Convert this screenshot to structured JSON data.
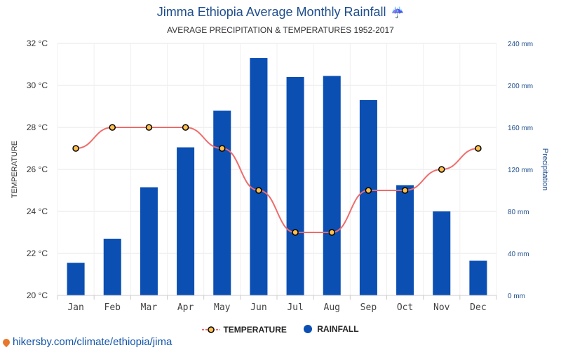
{
  "title": "Jimma Ethiopia Average Monthly Rainfall",
  "title_icon": "umbrella-rain-icon",
  "subtitle": "AVERAGE PRECIPITATION & TEMPERATURES 1952-2017",
  "source": "hikersby.com/climate/ethiopia/jima",
  "colors": {
    "title": "#1f4e8c",
    "bar": "#0b4fb3",
    "line": "#ef6b6b",
    "marker_fill": "#ffc04d",
    "marker_stroke": "#000000",
    "right_axis": "#1f4e8c"
  },
  "chart_data": {
    "type": "bar+line",
    "categories": [
      "Jan",
      "Feb",
      "Mar",
      "Apr",
      "May",
      "Jun",
      "Jul",
      "Aug",
      "Sep",
      "Oct",
      "Nov",
      "Dec"
    ],
    "series": [
      {
        "name": "RAINFALL",
        "type": "bar",
        "axis": "right",
        "unit": "mm",
        "values": [
          31,
          54,
          103,
          141,
          176,
          226,
          208,
          209,
          186,
          105,
          80,
          33
        ]
      },
      {
        "name": "TEMPERATURE",
        "type": "line",
        "axis": "left",
        "unit": "°C",
        "values": [
          27,
          28,
          28,
          28,
          27,
          25,
          23,
          23,
          25,
          25,
          26,
          27
        ]
      }
    ],
    "left_axis": {
      "label": "TEMPERATURE",
      "range": [
        20,
        32
      ],
      "ticks": [
        "20 °C",
        "22 °C",
        "24 °C",
        "26 °C",
        "28 °C",
        "30 °C",
        "32 °C"
      ]
    },
    "right_axis": {
      "label": "Precipitation",
      "range": [
        0,
        240
      ],
      "ticks": [
        "0 mm",
        "40 mm",
        "80 mm",
        "120 mm",
        "160 mm",
        "200 mm",
        "240 mm"
      ]
    },
    "grid": true,
    "legend": {
      "position": "bottom",
      "items": [
        "TEMPERATURE",
        "RAINFALL"
      ]
    }
  }
}
